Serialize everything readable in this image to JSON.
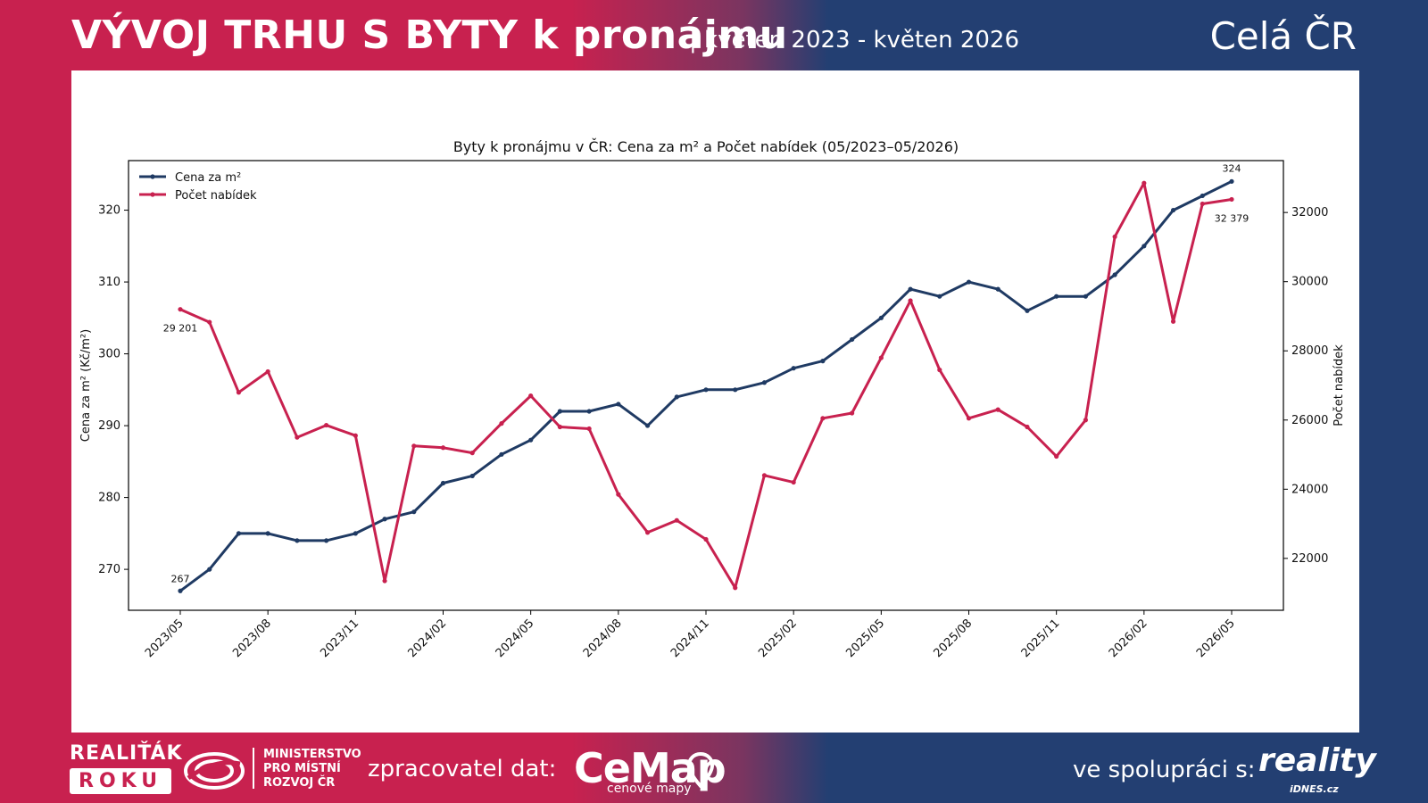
{
  "header": {
    "title": "VÝVOJ TRHU S BYTY k pronájmu",
    "subtitle": "| květen 2023 - květen 2026",
    "region": "Celá ČR"
  },
  "footer": {
    "award_line1": "REALIŤÁK",
    "award_line2": "ROKU",
    "ministry_line1": "MINISTERSTVO",
    "ministry_line2": "PRO MÍSTNÍ",
    "ministry_line3": "ROZVOJ ČR",
    "processor_label": "zpracovatel dat:",
    "processor_logo": "CeMap",
    "processor_logo_sub": "cenové mapy",
    "partner_label": "ve spolupráci s:",
    "partner_logo": "reality",
    "partner_logo_sub": "iDNES.cz"
  },
  "colors": {
    "brand_red": "#c8214f",
    "brand_blue": "#233f72",
    "price_line": "#1f3a63",
    "offers_line": "#c8214f"
  },
  "chart_data": {
    "type": "line",
    "title": "Byty k pronájmu v ČR: Cena za m² a Počet nabídek (05/2023–05/2026)",
    "ylabel_left": "Cena za m² (Kč/m²)",
    "ylabel_right": "Počet nabídek",
    "xtick_labels": [
      "2023/05",
      "2023/08",
      "2023/11",
      "2024/02",
      "2024/05",
      "2024/08",
      "2024/11",
      "2025/02",
      "2025/05",
      "2025/08",
      "2025/11",
      "2026/02",
      "2026/05"
    ],
    "ylim_left": [
      264.3,
      326.9
    ],
    "yticks_left": [
      270,
      280,
      290,
      300,
      310,
      320
    ],
    "ylim_right": [
      20500,
      33500
    ],
    "yticks_right": [
      22000,
      24000,
      26000,
      28000,
      30000,
      32000
    ],
    "legend_position": "top-left",
    "grid": false,
    "x": [
      "2023/05",
      "2023/06",
      "2023/07",
      "2023/08",
      "2023/09",
      "2023/10",
      "2023/11",
      "2023/12",
      "2024/01",
      "2024/02",
      "2024/03",
      "2024/04",
      "2024/05",
      "2024/06",
      "2024/07",
      "2024/08",
      "2024/09",
      "2024/10",
      "2024/11",
      "2024/12",
      "2025/01",
      "2025/02",
      "2025/03",
      "2025/04",
      "2025/05",
      "2025/06",
      "2025/07",
      "2025/08",
      "2025/09",
      "2025/10",
      "2025/11",
      "2025/12",
      "2026/01",
      "2026/02",
      "2026/03",
      "2026/04",
      "2026/05"
    ],
    "series": [
      {
        "name": "Cena za m²",
        "axis": "left",
        "color": "#1f3a63",
        "values": [
          267,
          270,
          275,
          275,
          274,
          274,
          275,
          277,
          278,
          282,
          283,
          286,
          288,
          292,
          292,
          293,
          290,
          294,
          295,
          295,
          296,
          298,
          299,
          302,
          305,
          309,
          308,
          310,
          309,
          306,
          308,
          308,
          311,
          315,
          320,
          322,
          324
        ]
      },
      {
        "name": "Počet nabídek",
        "axis": "right",
        "color": "#c8214f",
        "values": [
          29201,
          28830,
          26800,
          27400,
          25500,
          25850,
          25550,
          21350,
          25250,
          25200,
          25050,
          25900,
          26700,
          25800,
          25750,
          23850,
          22750,
          23100,
          22550,
          21150,
          24400,
          24200,
          26050,
          26200,
          27800,
          29450,
          27450,
          26050,
          26300,
          25800,
          24950,
          26000,
          31300,
          32850,
          28850,
          32250,
          32379
        ]
      }
    ],
    "annotations": [
      {
        "series": 0,
        "index": 0,
        "text": "267"
      },
      {
        "series": 0,
        "index": 36,
        "text": "324"
      },
      {
        "series": 1,
        "index": 0,
        "text": "29 201"
      },
      {
        "series": 1,
        "index": 36,
        "text": "32 379"
      }
    ]
  }
}
